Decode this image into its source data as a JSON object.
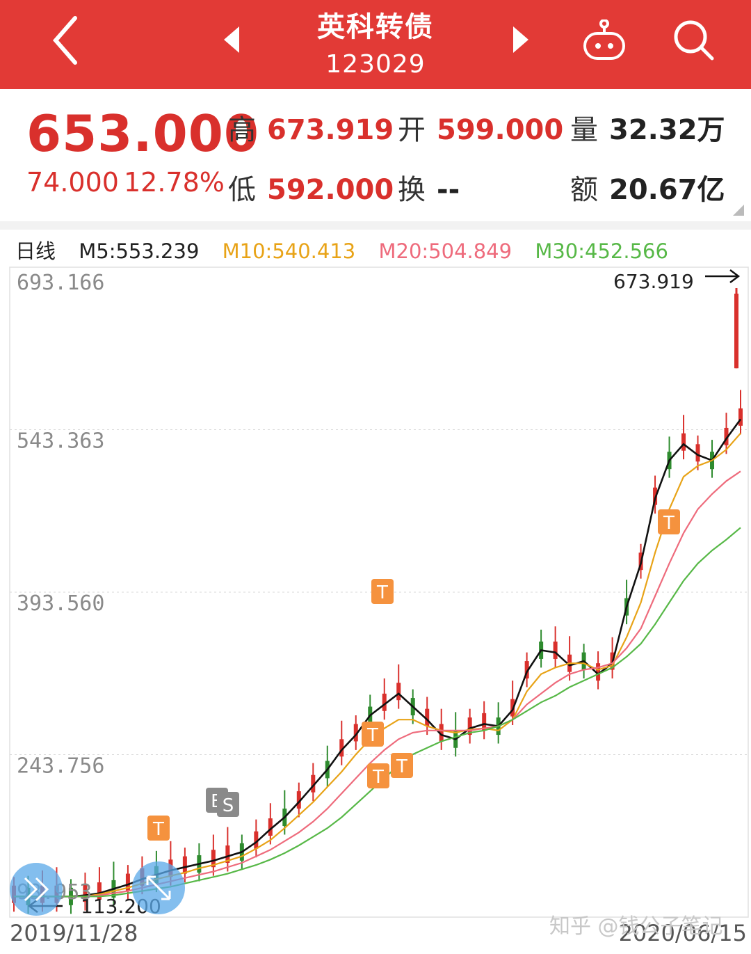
{
  "header": {
    "title": "英科转债",
    "code": "123029",
    "back_icon": "chevron-left-icon",
    "prev_icon": "triangle-left-icon",
    "next_icon": "triangle-right-icon",
    "robot_icon": "robot-icon",
    "search_icon": "search-icon"
  },
  "quote": {
    "price": "653.000",
    "change": "74.000",
    "change_pct": "12.78%",
    "high_label": "高",
    "high": "673.919",
    "open_label": "开",
    "open": "599.000",
    "volume_label": "量",
    "volume": "32.32万",
    "low_label": "低",
    "low": "592.000",
    "turnover_label": "换",
    "turnover": "--",
    "amount_label": "额",
    "amount": "20.67亿"
  },
  "ma_row": {
    "period": "日线",
    "m5": "M5:553.239",
    "m10": "M10:540.413",
    "m20": "M20:504.849",
    "m30": "M30:452.566"
  },
  "colors": {
    "brand_red": "#e23a36",
    "up": "#d9302c",
    "down": "#2e8b2e",
    "m5": "#111111",
    "m10": "#e8a317",
    "m20": "#ee6b7c",
    "m30": "#57b847",
    "marker": "#f5923e"
  },
  "chart_data": {
    "type": "candlestick",
    "y_ticks": [
      "693.166",
      "543.363",
      "393.560",
      "243.756"
    ],
    "ylim": [
      93.95,
      693.166
    ],
    "x_start_label": "2019/11/28",
    "x_end_label": "2020/06/15",
    "max_annotation": "673.919",
    "min_annotation": "113.200",
    "left_edge_label": "93.953",
    "series": [
      {
        "name": "M5",
        "values": [
          113,
          113,
          113,
          113,
          113,
          114,
          116,
          120,
          124,
          129,
          133,
          137,
          140,
          143,
          146,
          150,
          154,
          163,
          175,
          186,
          200,
          215,
          230,
          248,
          262,
          280,
          290,
          300,
          288,
          276,
          262,
          258,
          268,
          272,
          270,
          285,
          320,
          340,
          338,
          326,
          330,
          318,
          328,
          380,
          420,
          480,
          515,
          530,
          520,
          515,
          535,
          553
        ]
      },
      {
        "name": "M10",
        "values": [
          113,
          113,
          113,
          113,
          113,
          113,
          115,
          118,
          121,
          125,
          129,
          132,
          135,
          139,
          142,
          146,
          150,
          157,
          165,
          176,
          188,
          200,
          214,
          228,
          244,
          258,
          268,
          276,
          276,
          270,
          266,
          264,
          267,
          268,
          266,
          276,
          302,
          318,
          324,
          328,
          328,
          322,
          326,
          352,
          384,
          430,
          470,
          500,
          510,
          515,
          525,
          540
        ]
      },
      {
        "name": "M20",
        "values": [
          113,
          113,
          113,
          113,
          113,
          113,
          114,
          116,
          118,
          121,
          124,
          127,
          130,
          133,
          136,
          140,
          144,
          150,
          156,
          164,
          172,
          182,
          194,
          208,
          222,
          236,
          248,
          258,
          264,
          266,
          266,
          266,
          266,
          268,
          270,
          276,
          290,
          300,
          310,
          318,
          322,
          324,
          328,
          342,
          360,
          390,
          420,
          448,
          470,
          484,
          496,
          505
        ]
      },
      {
        "name": "M30",
        "values": [
          113,
          113,
          113,
          113,
          113,
          113,
          113,
          114,
          116,
          118,
          120,
          122,
          125,
          128,
          131,
          134,
          138,
          142,
          147,
          153,
          160,
          168,
          176,
          186,
          198,
          210,
          222,
          234,
          244,
          250,
          256,
          260,
          264,
          266,
          270,
          276,
          284,
          292,
          298,
          306,
          312,
          318,
          324,
          334,
          346,
          364,
          384,
          404,
          420,
          432,
          442,
          453
        ]
      }
    ],
    "markers": [
      "T",
      "B",
      "S",
      "T",
      "T",
      "T",
      "T",
      "T"
    ]
  }
}
